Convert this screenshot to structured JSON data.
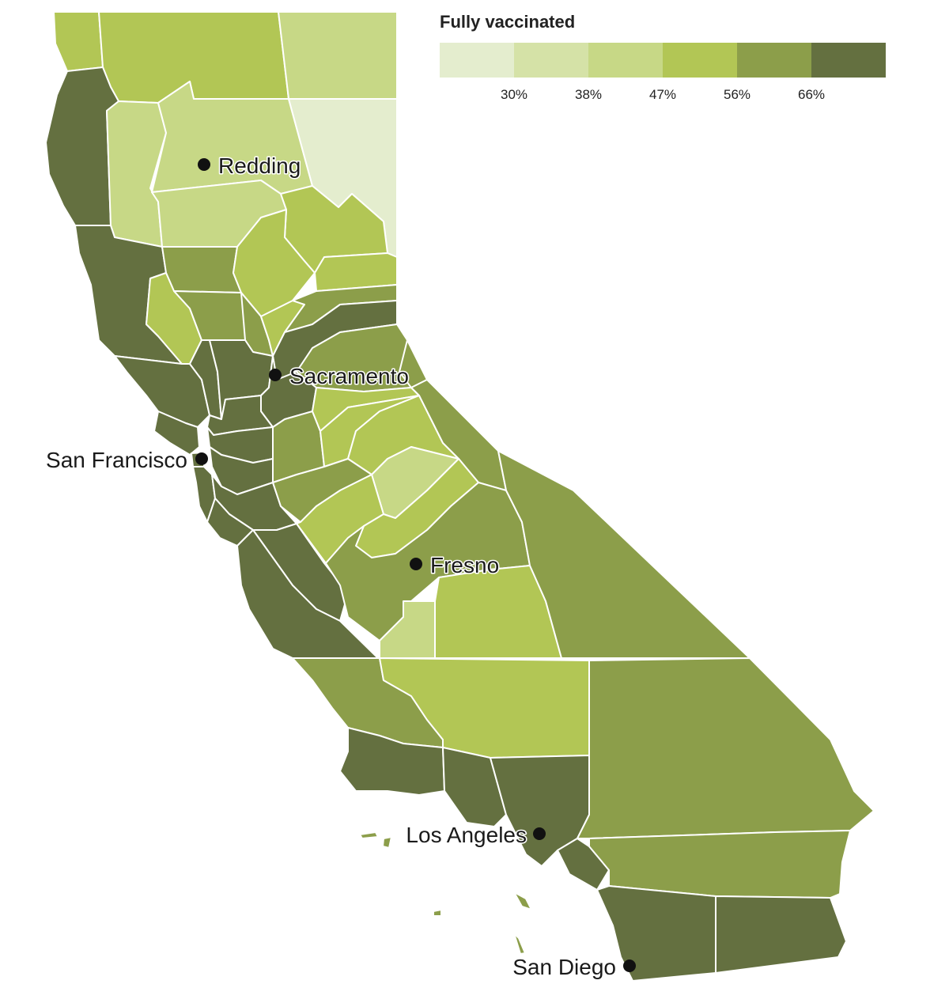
{
  "legend": {
    "title": "Fully vaccinated",
    "colors": [
      "#e4edce",
      "#d5e2a7",
      "#c7d886",
      "#b2c655",
      "#8c9e4a",
      "#647040"
    ],
    "ticks": [
      "30%",
      "38%",
      "47%",
      "56%",
      "66%"
    ]
  },
  "cities": {
    "redding": "Redding",
    "sacramento": "Sacramento",
    "san_francisco": "San Francisco",
    "fresno": "Fresno",
    "los_angeles": "Los Angeles",
    "san_diego": "San Diego"
  },
  "region_levels": {
    "del-norte": 3,
    "siskiyou": 3,
    "modoc": 2,
    "humboldt": 5,
    "trinity": 2,
    "shasta": 2,
    "lassen": 0,
    "tehama": 2,
    "plumas": 3,
    "mendocino": 5,
    "glenn": 4,
    "butte": 3,
    "sierra": 3,
    "lake": 3,
    "colusa": 4,
    "sutter": 4,
    "yuba": 3,
    "nevada": 4,
    "placer": 5,
    "sonoma": 5,
    "napa": 5,
    "yolo": 5,
    "sacramento": 5,
    "el-dorado": 4,
    "alpine": 4,
    "marin": 5,
    "solano": 5,
    "contra-costa": 5,
    "alameda": 5,
    "san-francisco": 5,
    "san-mateo": 5,
    "santa-clara": 5,
    "santa-cruz": 5,
    "san-benito": 5,
    "monterey": 5,
    "san-joaquin": 4,
    "amador": 3,
    "calaveras": 3,
    "tuolumne": 3,
    "mono": 4,
    "stanislaus": 4,
    "mariposa": 2,
    "merced": 3,
    "madera": 3,
    "fresno": 4,
    "kings": 2,
    "tulare": 3,
    "inyo": 4,
    "san-luis-obispo": 4,
    "kern": 3,
    "santa-barbara": 5,
    "ventura": 5,
    "los-angeles": 5,
    "san-bernardino": 4,
    "orange": 5,
    "riverside": 4,
    "san-diego": 5,
    "imperial": 5,
    "islands": 4
  }
}
